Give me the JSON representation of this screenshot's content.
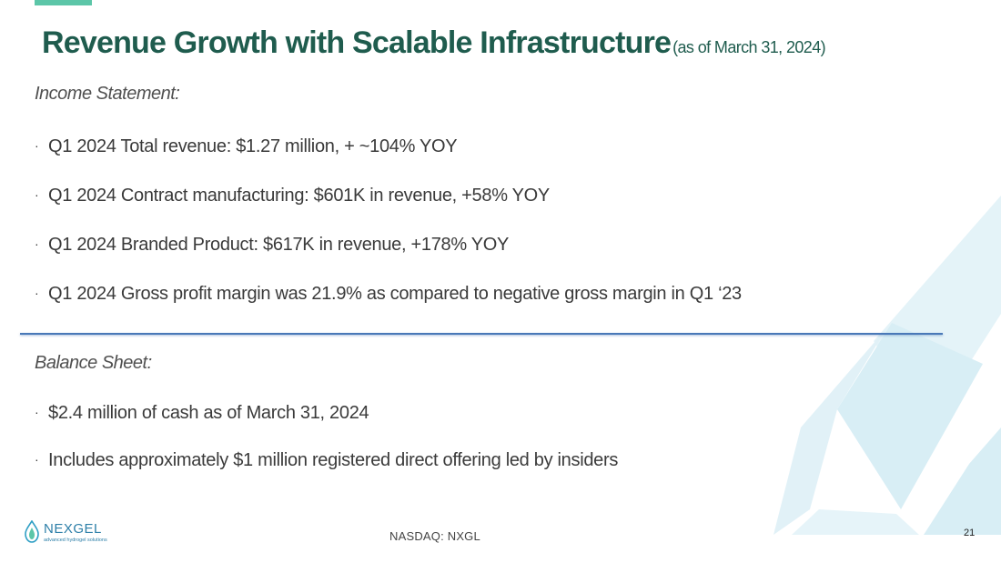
{
  "title": "Revenue Growth with Scalable Infrastructure",
  "subtitle": "(as of March 31, 2024)",
  "income_statement": {
    "heading": "Income Statement:",
    "bullets": [
      "Q1 2024 Total revenue: $1.27 million, + ~104% YOY",
      "Q1 2024 Contract manufacturing: $601K in revenue, +58% YOY",
      "Q1 2024 Branded Product: $617K in revenue, +178% YOY",
      "Q1 2024 Gross profit margin was 21.9% as compared to negative gross margin in Q1 ‘23"
    ]
  },
  "balance_sheet": {
    "heading": "Balance Sheet:",
    "bullets": [
      "$2.4 million of cash as of March 31, 2024",
      "Includes approximately $1 million registered direct offering led by insiders"
    ]
  },
  "bullet_glyph": "·",
  "logo": {
    "name": "NEXGEL",
    "tagline": "advanced hydrogel solutions"
  },
  "footer": {
    "ticker": "NASDAQ: NXGL",
    "page_number": "21"
  },
  "colors": {
    "title": "#1f5c4e",
    "accent": "#5cc6a8",
    "divider": "#4a79b8",
    "decoration": "#d4ecf3",
    "logo": "#2d7fa8"
  }
}
